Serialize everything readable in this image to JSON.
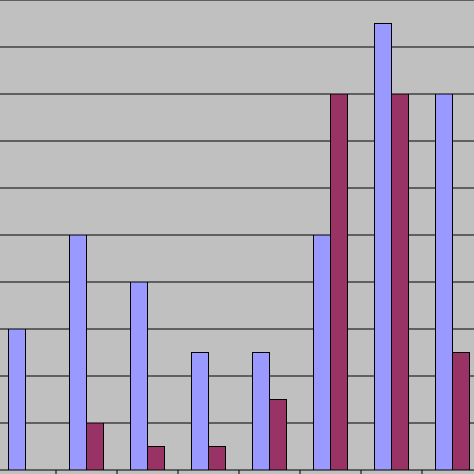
{
  "chart_data": {
    "type": "bar",
    "categories": [
      null,
      null,
      null,
      null,
      null,
      null,
      null,
      null
    ],
    "series": [
      {
        "color": "#9999ff",
        "values": [
          3,
          5,
          4,
          2.5,
          2.5,
          5,
          9.5,
          8
        ]
      },
      {
        "color": "#993366",
        "values": [
          0,
          1,
          0.5,
          0.5,
          1.5,
          8,
          8,
          2.5
        ]
      }
    ],
    "ylim": [
      0,
      10
    ],
    "yticks": [
      0,
      1,
      2,
      3,
      4,
      5,
      6,
      7,
      8,
      9,
      10
    ],
    "grid": true
  }
}
